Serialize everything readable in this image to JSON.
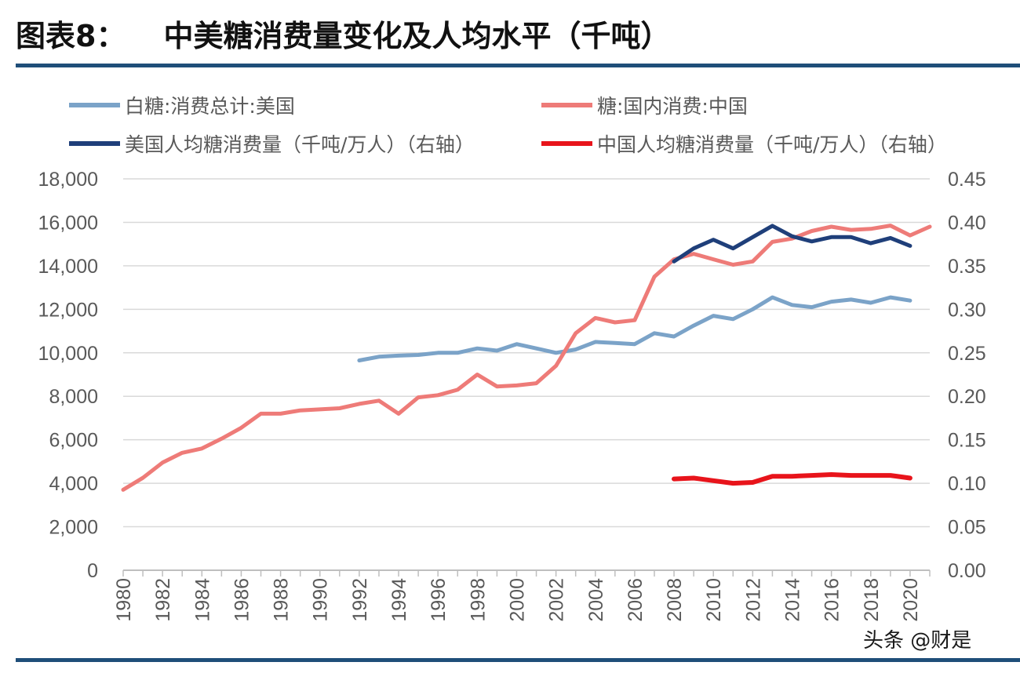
{
  "header": {
    "prefix": "图表8：",
    "title": "中美糖消费量变化及人均水平（千吨）"
  },
  "watermark": "头条 @财是",
  "colors": {
    "accent_rule": "#1f4e79",
    "us_total": "#7ba3c8",
    "cn_total": "#ee7b78",
    "us_per_capita": "#1f3f7a",
    "cn_per_capita": "#e8141b",
    "grid": "#d9d9d9",
    "axis": "#bfbfbf"
  },
  "legend": [
    {
      "label": "白糖:消费总计:美国",
      "color": "#7ba3c8"
    },
    {
      "label": "糖:国内消费:中国",
      "color": "#ee7b78"
    },
    {
      "label": "美国人均糖消费量（千吨/万人）（右轴）",
      "color": "#1f3f7a"
    },
    {
      "label": "中国人均糖消费量（千吨/万人）（右轴）",
      "color": "#e8141b"
    }
  ],
  "chart_data": {
    "type": "line",
    "x_ticks": [
      "1980",
      "1982",
      "1984",
      "1986",
      "1988",
      "1990",
      "1992",
      "1994",
      "1996",
      "1998",
      "2000",
      "2002",
      "2004",
      "2006",
      "2008",
      "2010",
      "2012",
      "2014",
      "2016",
      "2018",
      "2020"
    ],
    "x_range": [
      1980,
      2021
    ],
    "y_left": {
      "range": [
        0,
        18000
      ],
      "ticks": [
        "0",
        "2,000",
        "4,000",
        "6,000",
        "8,000",
        "10,000",
        "12,000",
        "14,000",
        "16,000",
        "18,000"
      ]
    },
    "y_right": {
      "range": [
        0,
        0.45
      ],
      "ticks": [
        "0.00",
        "0.05",
        "0.10",
        "0.15",
        "0.20",
        "0.25",
        "0.30",
        "0.35",
        "0.40",
        "0.45"
      ]
    },
    "grid": true,
    "legend_position": "top",
    "series": [
      {
        "name": "白糖:消费总计:美国",
        "axis": "left",
        "x": [
          1992,
          1993,
          1994,
          1995,
          1996,
          1997,
          1998,
          1999,
          2000,
          2001,
          2002,
          2003,
          2004,
          2005,
          2006,
          2007,
          2008,
          2009,
          2010,
          2011,
          2012,
          2013,
          2014,
          2015,
          2016,
          2017,
          2018,
          2019,
          2020
        ],
        "y": [
          9650,
          9820,
          9870,
          9900,
          10000,
          10000,
          10200,
          10100,
          10400,
          10200,
          10000,
          10150,
          10500,
          10450,
          10400,
          10900,
          10750,
          11250,
          11700,
          11550,
          12000,
          12550,
          12200,
          12100,
          12350,
          12450,
          12300,
          12550,
          12400
        ]
      },
      {
        "name": "糖:国内消费:中国",
        "axis": "left",
        "x": [
          1980,
          1981,
          1982,
          1983,
          1984,
          1985,
          1986,
          1987,
          1988,
          1989,
          1990,
          1991,
          1992,
          1993,
          1994,
          1995,
          1996,
          1997,
          1998,
          1999,
          2000,
          2001,
          2002,
          2003,
          2004,
          2005,
          2006,
          2007,
          2008,
          2009,
          2010,
          2011,
          2012,
          2013,
          2014,
          2015,
          2016,
          2017,
          2018,
          2019,
          2020,
          2021
        ],
        "y": [
          3700,
          4250,
          4950,
          5400,
          5600,
          6050,
          6550,
          7200,
          7200,
          7350,
          7400,
          7450,
          7650,
          7800,
          7200,
          7950,
          8050,
          8300,
          9000,
          8450,
          8500,
          8600,
          9400,
          10900,
          11600,
          11400,
          11500,
          13500,
          14300,
          14550,
          14300,
          14050,
          14200,
          15100,
          15250,
          15600,
          15800,
          15650,
          15700,
          15850,
          15400,
          15800
        ]
      },
      {
        "name": "美国人均糖消费量（千吨/万人）（右轴）",
        "axis": "right",
        "x": [
          2008,
          2009,
          2010,
          2011,
          2012,
          2013,
          2014,
          2015,
          2016,
          2017,
          2018,
          2019,
          2020
        ],
        "y": [
          0.355,
          0.37,
          0.38,
          0.37,
          0.383,
          0.396,
          0.384,
          0.378,
          0.383,
          0.383,
          0.376,
          0.382,
          0.373
        ]
      },
      {
        "name": "中国人均糖消费量（千吨/万人）（右轴）",
        "axis": "right",
        "x": [
          2008,
          2009,
          2010,
          2011,
          2012,
          2013,
          2014,
          2015,
          2016,
          2017,
          2018,
          2019,
          2020
        ],
        "y": [
          0.105,
          0.106,
          0.103,
          0.1,
          0.101,
          0.108,
          0.108,
          0.109,
          0.11,
          0.109,
          0.109,
          0.109,
          0.106
        ]
      }
    ]
  }
}
